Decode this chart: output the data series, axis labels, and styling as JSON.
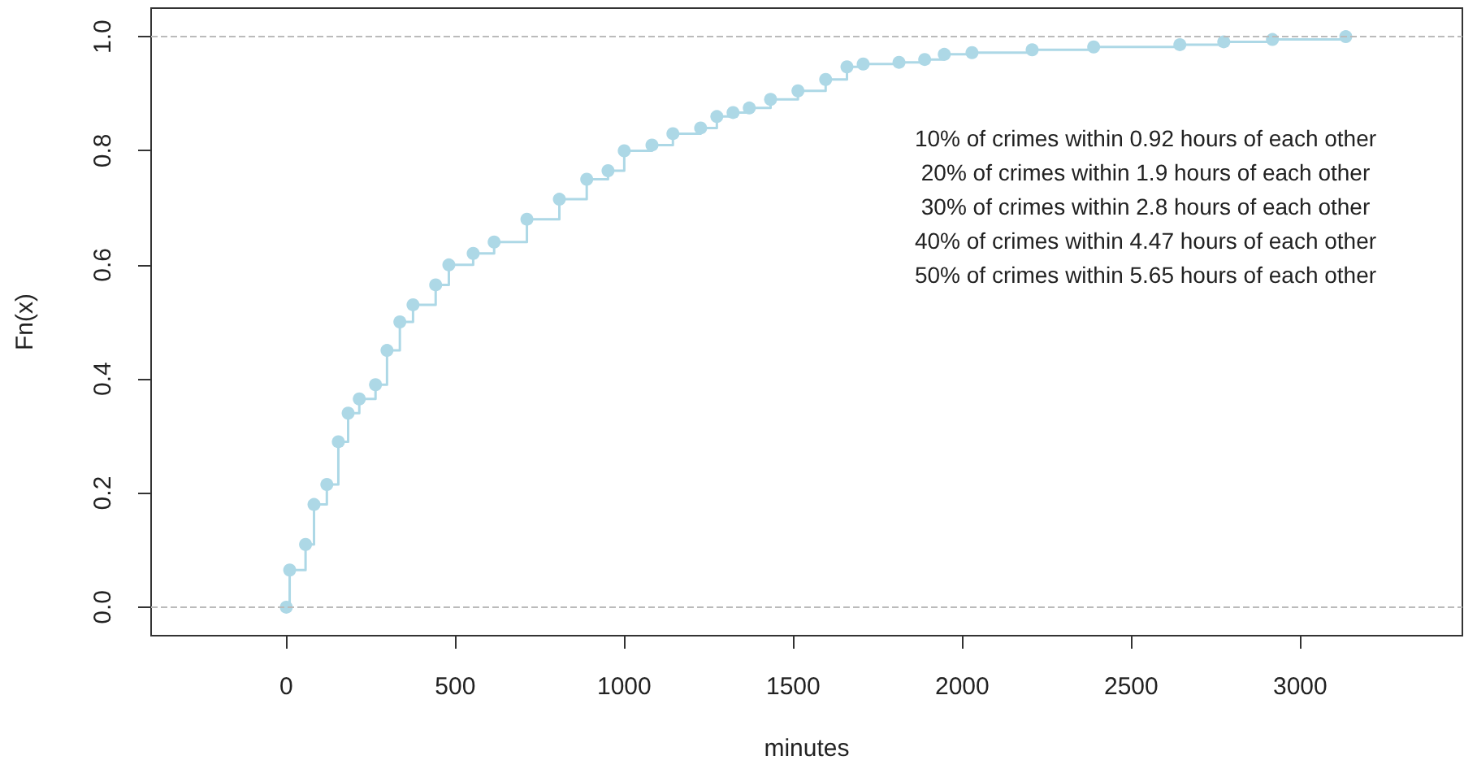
{
  "chart_data": {
    "type": "step",
    "xlabel": "minutes",
    "ylabel": "Fn(x)",
    "x": [
      0,
      10,
      57,
      82,
      120,
      154,
      183,
      216,
      264,
      298,
      336,
      375,
      442,
      481,
      553,
      615,
      712,
      808,
      889,
      952,
      1000,
      1082,
      1144,
      1226,
      1274,
      1322,
      1370,
      1433,
      1514,
      1596,
      1659,
      1707,
      1813,
      1889,
      1947,
      2029,
      2207,
      2389,
      2644,
      2774,
      2918,
      3135
    ],
    "series": [
      {
        "color": "#add8e6",
        "values": [
          0,
          0.065,
          0.11,
          0.18,
          0.215,
          0.29,
          0.34,
          0.365,
          0.39,
          0.45,
          0.5,
          0.53,
          0.565,
          0.6,
          0.62,
          0.64,
          0.68,
          0.715,
          0.75,
          0.765,
          0.8,
          0.81,
          0.83,
          0.84,
          0.86,
          0.867,
          0.875,
          0.89,
          0.905,
          0.925,
          0.947,
          0.952,
          0.955,
          0.96,
          0.969,
          0.972,
          0.977,
          0.982,
          0.986,
          0.991,
          0.995,
          1.0
        ]
      }
    ],
    "xlim": [
      -400,
      3480
    ],
    "xticks": [
      0,
      500,
      1000,
      1500,
      2000,
      2500,
      3000
    ],
    "ylim": [
      -0.05,
      1.05
    ],
    "yticks": [
      {
        "value": 0,
        "label": "0.0"
      },
      {
        "value": 0.2,
        "label": "0.2"
      },
      {
        "value": 0.4,
        "label": "0.4"
      },
      {
        "value": 0.6,
        "label": "0.6"
      },
      {
        "value": 0.8,
        "label": "0.8"
      },
      {
        "value": 1,
        "label": "1.0"
      }
    ],
    "ref_lines": [
      {
        "axis": "y",
        "value": 0,
        "color": "#bbbbbb",
        "line_style": "dashed"
      },
      {
        "axis": "y",
        "value": 1,
        "color": "#bbbbbb",
        "line_style": "dashed"
      }
    ],
    "annotations": [
      "10% of crimes within 0.92 hours of each other",
      "20% of crimes within 1.9 hours of each other",
      "30% of crimes within 2.8 hours of each other",
      "40% of crimes within 4.47 hours of each other",
      "50% of crimes within 5.65 hours of each other"
    ],
    "marker": "circle"
  }
}
